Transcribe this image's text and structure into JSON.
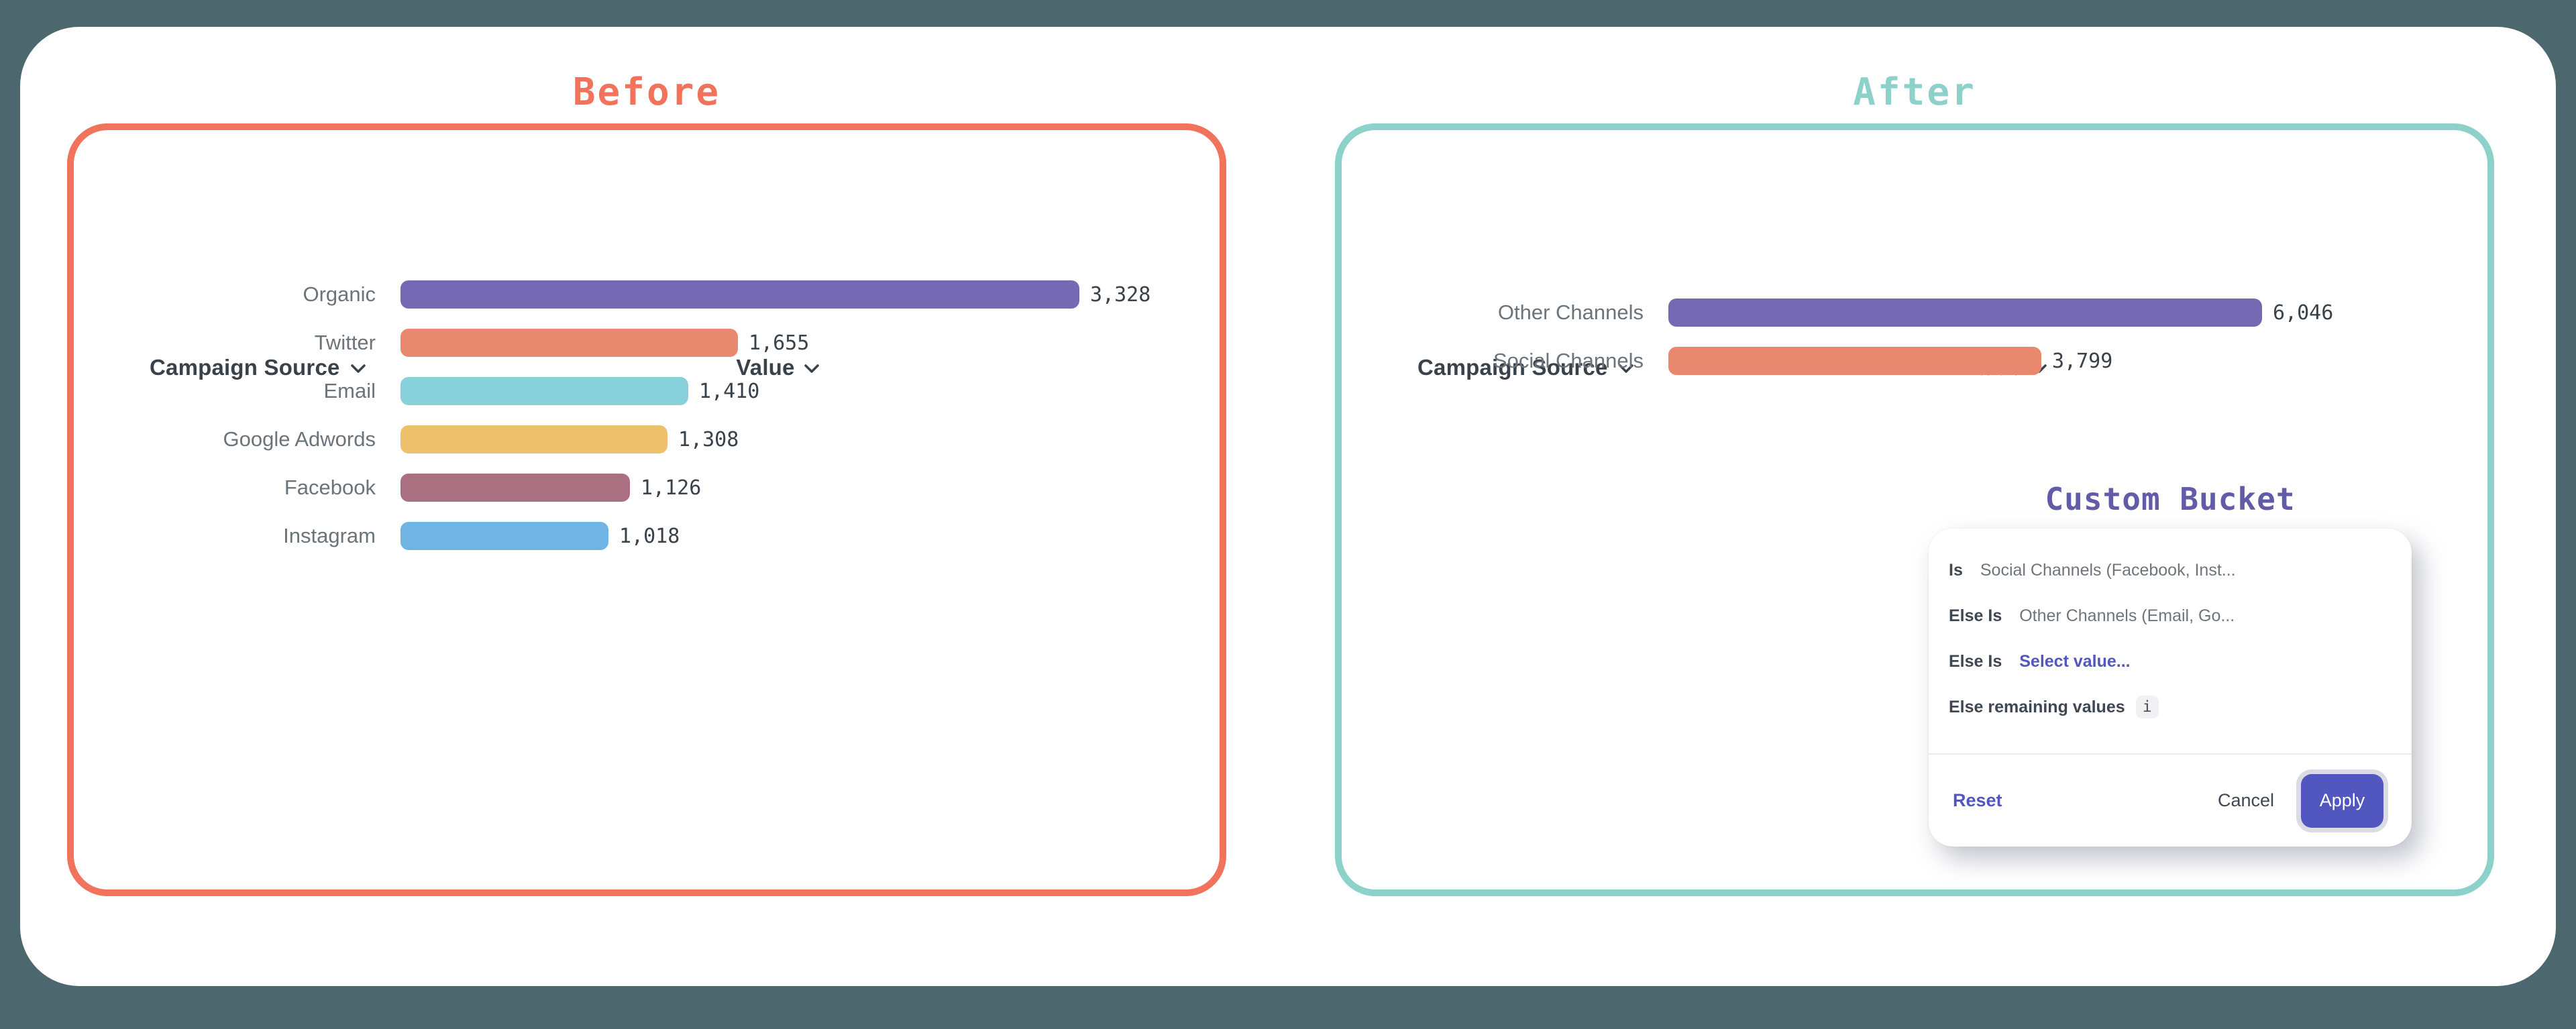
{
  "window": {
    "background_color": "#4C686E",
    "card_background": "#FFFFFF"
  },
  "panels": {
    "before": {
      "title": "Before",
      "accent_color": "#F1735B"
    },
    "after": {
      "title": "After",
      "accent_color": "#8DD1CB"
    }
  },
  "chart_data": [
    {
      "type": "bar",
      "orientation": "horizontal",
      "panel": "Before",
      "columns": {
        "dimension": "Campaign Source",
        "measure": "Value"
      },
      "categories": [
        "Organic",
        "Twitter",
        "Email",
        "Google Adwords",
        "Facebook",
        "Instagram"
      ],
      "values": [
        3328,
        1655,
        1410,
        1308,
        1126,
        1018
      ],
      "value_labels": [
        "3,328",
        "1,655",
        "1,410",
        "1,308",
        "1,126",
        "1,018"
      ],
      "bar_colors": [
        "#7669B3",
        "#E8886E",
        "#87D1DB",
        "#ECC06C",
        "#AA6F80",
        "#70B4E4"
      ],
      "xlim": [
        0,
        3328
      ],
      "grid": false,
      "legend": false
    },
    {
      "type": "bar",
      "orientation": "horizontal",
      "panel": "After",
      "columns": {
        "dimension": "Campaign Source",
        "measure": "Value"
      },
      "categories": [
        "Other Channels",
        "Social Channels"
      ],
      "values": [
        6046,
        3799
      ],
      "value_labels": [
        "6,046",
        "3,799"
      ],
      "bar_colors": [
        "#7669B3",
        "#E8886E"
      ],
      "xlim": [
        0,
        6046
      ],
      "grid": false,
      "legend": false
    }
  ],
  "custom_bucket": {
    "title": "Custom Bucket",
    "title_color": "#615BA8",
    "link_color": "#5157BE",
    "conditions": [
      {
        "label": "Is",
        "value": "Social Channels (Facebook, Inst..."
      },
      {
        "label": "Else Is",
        "value": "Other Channels (Email, Go..."
      },
      {
        "label": "Else Is",
        "value": "Select value..."
      },
      {
        "label": "Else remaining values",
        "info_icon": "i"
      }
    ],
    "footer": {
      "reset": "Reset",
      "cancel": "Cancel",
      "apply": "Apply"
    }
  }
}
